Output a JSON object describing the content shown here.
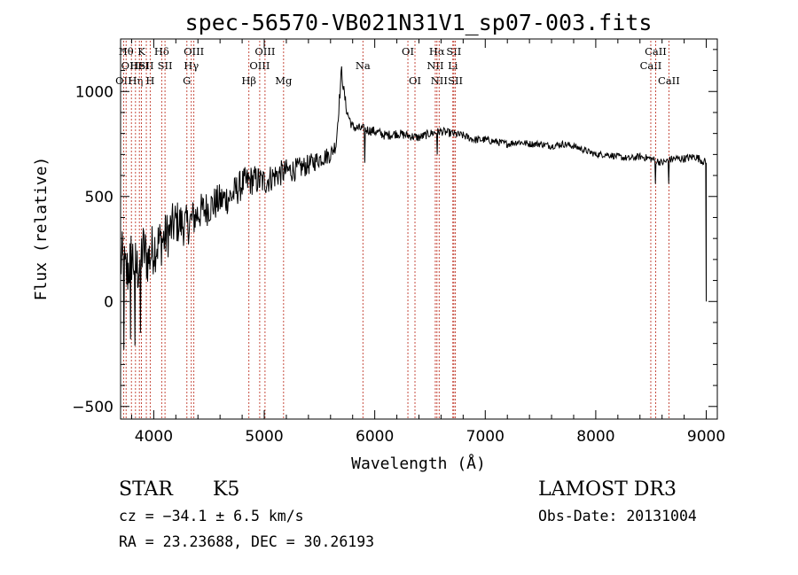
{
  "chart_data": {
    "type": "line",
    "title": "spec-56570-VB021N31V1_sp07-003.fits",
    "xlabel": "Wavelength (Å)",
    "ylabel": "Flux (relative)",
    "xlim": [
      3700,
      9100
    ],
    "ylim": [
      -560,
      1250
    ],
    "xticks": [
      4000,
      5000,
      6000,
      7000,
      8000,
      9000
    ],
    "xtick_labels": [
      "4000",
      "5000",
      "6000",
      "7000",
      "8000",
      "9000"
    ],
    "yticks": [
      -500,
      0,
      500,
      1000
    ],
    "ytick_labels": [
      "−500",
      "0",
      "500",
      "1000"
    ],
    "series": [
      {
        "name": "flux",
        "anchors": [
          [
            3700,
            200
          ],
          [
            3750,
            120
          ],
          [
            3800,
            220
          ],
          [
            3850,
            150
          ],
          [
            3900,
            250
          ],
          [
            3950,
            200
          ],
          [
            4000,
            260
          ],
          [
            4050,
            280
          ],
          [
            4100,
            300
          ],
          [
            4200,
            380
          ],
          [
            4300,
            360
          ],
          [
            4400,
            420
          ],
          [
            4500,
            450
          ],
          [
            4600,
            480
          ],
          [
            4700,
            500
          ],
          [
            4800,
            560
          ],
          [
            4900,
            580
          ],
          [
            5000,
            570
          ],
          [
            5100,
            600
          ],
          [
            5200,
            620
          ],
          [
            5300,
            630
          ],
          [
            5400,
            650
          ],
          [
            5500,
            680
          ],
          [
            5600,
            700
          ],
          [
            5650,
            750
          ],
          [
            5700,
            1100
          ],
          [
            5720,
            1000
          ],
          [
            5750,
            900
          ],
          [
            5800,
            830
          ],
          [
            5900,
            820
          ],
          [
            6000,
            810
          ],
          [
            6100,
            790
          ],
          [
            6200,
            800
          ],
          [
            6300,
            790
          ],
          [
            6400,
            780
          ],
          [
            6500,
            800
          ],
          [
            6600,
            810
          ],
          [
            6700,
            800
          ],
          [
            6800,
            790
          ],
          [
            6900,
            770
          ],
          [
            7000,
            770
          ],
          [
            7100,
            760
          ],
          [
            7200,
            750
          ],
          [
            7300,
            760
          ],
          [
            7400,
            750
          ],
          [
            7500,
            750
          ],
          [
            7600,
            740
          ],
          [
            7700,
            750
          ],
          [
            7800,
            740
          ],
          [
            7900,
            720
          ],
          [
            8000,
            700
          ],
          [
            8100,
            700
          ],
          [
            8200,
            690
          ],
          [
            8300,
            680
          ],
          [
            8400,
            690
          ],
          [
            8500,
            680
          ],
          [
            8600,
            660
          ],
          [
            8700,
            680
          ],
          [
            8800,
            680
          ],
          [
            8900,
            690
          ],
          [
            9000,
            660
          ]
        ],
        "noise": [
          [
            3700,
            160
          ],
          [
            4000,
            130
          ],
          [
            4400,
            90
          ],
          [
            5000,
            70
          ],
          [
            5600,
            40
          ],
          [
            5800,
            25
          ],
          [
            7000,
            18
          ],
          [
            8000,
            15
          ],
          [
            9000,
            20
          ]
        ],
        "spikes": [
          [
            3730,
            -230
          ],
          [
            3790,
            -180
          ],
          [
            3830,
            -210
          ],
          [
            3880,
            -150
          ],
          [
            5910,
            660
          ],
          [
            6563,
            700
          ],
          [
            8542,
            560
          ],
          [
            8662,
            560
          ],
          [
            9000,
            0
          ]
        ]
      }
    ],
    "lines": [
      {
        "wave": 3727,
        "label": "OII",
        "row": 3
      },
      {
        "wave": 3750,
        "label": "Hθ",
        "row": 1
      },
      {
        "wave": 3798,
        "label": "OIII",
        "row": 2
      },
      {
        "wave": 3835,
        "label": "Hη",
        "row": 3
      },
      {
        "wave": 3870,
        "label": "HeI",
        "row": 2
      },
      {
        "wave": 3889,
        "label": "K",
        "row": 1
      },
      {
        "wave": 3933,
        "label": "SII",
        "row": 2
      },
      {
        "wave": 3968,
        "label": "H",
        "row": 3
      },
      {
        "wave": 4072,
        "label": "Hδ",
        "row": 1
      },
      {
        "wave": 4102,
        "label": "SII",
        "row": 2
      },
      {
        "wave": 4300,
        "label": "G",
        "row": 3
      },
      {
        "wave": 4340,
        "label": "Hγ",
        "row": 2
      },
      {
        "wave": 4363,
        "label": "OIII",
        "row": 1
      },
      {
        "wave": 4861,
        "label": "Hβ",
        "row": 3
      },
      {
        "wave": 4959,
        "label": "OIII",
        "row": 2
      },
      {
        "wave": 5007,
        "label": "OIII",
        "row": 1
      },
      {
        "wave": 5175,
        "label": "Mg",
        "row": 3
      },
      {
        "wave": 5893,
        "label": "Na",
        "row": 2
      },
      {
        "wave": 6300,
        "label": "OI",
        "row": 1
      },
      {
        "wave": 6364,
        "label": "OI",
        "row": 3
      },
      {
        "wave": 6548,
        "label": "NII",
        "row": 2
      },
      {
        "wave": 6563,
        "label": "Hα",
        "row": 1
      },
      {
        "wave": 6583,
        "label": "NII",
        "row": 3
      },
      {
        "wave": 6707,
        "label": "Li",
        "row": 2
      },
      {
        "wave": 6716,
        "label": "SII",
        "row": 1
      },
      {
        "wave": 6730,
        "label": "SII",
        "row": 3
      },
      {
        "wave": 8498,
        "label": "CaII",
        "row": 2
      },
      {
        "wave": 8542,
        "label": "CaII",
        "row": 1
      },
      {
        "wave": 8662,
        "label": "CaII",
        "row": 3
      }
    ]
  },
  "info": {
    "object_class": "STAR",
    "subclass": "K5",
    "survey": "LAMOST DR3",
    "cz": "cz = −34.1 ± 6.5 km/s",
    "obs_date": "Obs-Date: 20131004",
    "coords": "RA =  23.23688, DEC =  30.26193"
  }
}
